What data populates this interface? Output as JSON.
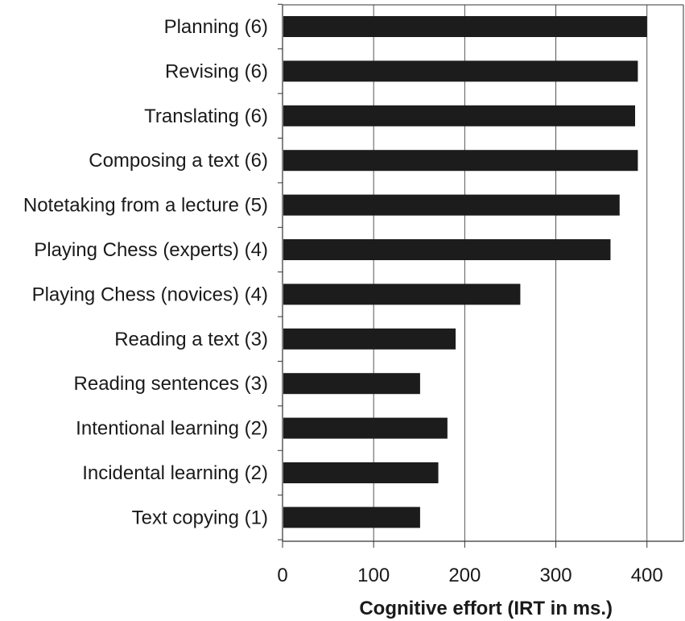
{
  "chart_data": {
    "type": "bar",
    "orientation": "horizontal",
    "categories": [
      "Planning (6)",
      "Revising (6)",
      "Translating (6)",
      "Composing a text (6)",
      "Notetaking from a lecture (5)",
      "Playing Chess (experts) (4)",
      "Playing Chess (novices) (4)",
      "Reading a text (3)",
      "Reading sentences (3)",
      "Intentional learning (2)",
      "Incidental learning (2)",
      "Text copying (1)"
    ],
    "values": [
      400,
      390,
      387,
      390,
      370,
      360,
      261,
      190,
      151,
      181,
      171,
      151
    ],
    "xlabel": "Cognitive effort (IRT in ms.)",
    "ylabel": "",
    "title": "",
    "xlim": [
      0,
      440
    ],
    "xticks": [
      0,
      100,
      200,
      300,
      400
    ],
    "grid": "vertical",
    "bar_color": "#1c1c1c"
  }
}
